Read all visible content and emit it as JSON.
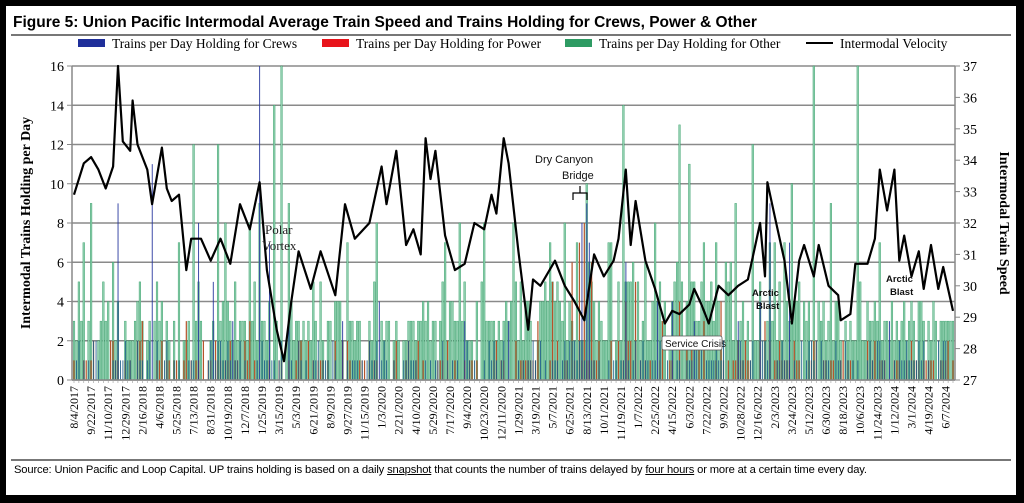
{
  "figure": {
    "title": "Figure 5: Union Pacific Intermodal Average Train Speed and Trains Holding for Crews, Power & Other",
    "source_prefix": "Source: Union Pacific and Loop Capital. UP trains holding is based on a daily ",
    "source_u1": "snapshot",
    "source_mid": " that counts the number of trains delayed by ",
    "source_u2": "four hours",
    "source_suffix": " or more at a certain time every day."
  },
  "colors": {
    "crews": "#1f2f9a",
    "power": "#e8141b",
    "other": "#2e9b63",
    "other_fill": "#8fcfae",
    "velocity": "#000000",
    "grid": "#8a8a8a"
  },
  "chart_data": {
    "type": "bar",
    "title": "Figure 5: Union Pacific Intermodal Average Train Speed and Trains Holding for Crews, Power & Other",
    "ylabel": "Intermodal  Trains  Holding  per  Day",
    "y2label": "Intermodal  Train  Speed",
    "ylim": [
      0,
      16
    ],
    "y2lim": [
      27,
      37
    ],
    "yticks": [
      "0",
      "2",
      "4",
      "6",
      "8",
      "10",
      "12",
      "14",
      "16"
    ],
    "y2ticks": [
      "27",
      "28",
      "29",
      "30",
      "31",
      "32",
      "33",
      "34",
      "35",
      "36",
      "37"
    ],
    "grid": true,
    "legend": {
      "placement": "top",
      "entries": [
        {
          "name": "Trains per Day Holding for Crews",
          "kind": "bar",
          "key": "crews"
        },
        {
          "name": "Trains per Day Holding for Power",
          "kind": "bar",
          "key": "power"
        },
        {
          "name": "Trains per Day Holding for Other",
          "kind": "bar",
          "key": "other"
        },
        {
          "name": "Intermodal Velocity",
          "kind": "line",
          "key": "velocity"
        }
      ]
    },
    "x_tick_labels": [
      "8/4/2017",
      "9/22/2017",
      "11/10/2017",
      "12/29/2017",
      "2/16/2018",
      "4/6/2018",
      "5/25/2018",
      "7/13/2018",
      "8/31/2018",
      "10/19/2018",
      "12/7/2018",
      "1/25/2019",
      "3/15/2019",
      "5/3/2019",
      "6/21/2019",
      "8/9/2019",
      "9/27/2019",
      "11/15/2019",
      "1/3/2020",
      "2/21/2020",
      "4/10/2020",
      "5/29/2020",
      "7/17/2020",
      "9/4/2020",
      "10/23/2020",
      "12/11/2020",
      "1/29/2021",
      "3/19/2021",
      "5/7/2021",
      "6/25/2021",
      "8/13/2021",
      "10/1/2021",
      "11/19/2021",
      "1/7/2022",
      "2/25/2022",
      "4/15/2022",
      "6/3/2022",
      "7/22/2022",
      "9/9/2022",
      "10/28/2022",
      "12/16/2022",
      "2/3/2023",
      "3/24/2023",
      "5/12/2023",
      "6/30/2023",
      "8/18/2023",
      "10/6/2023",
      "11/24/2023",
      "1/12/2024",
      "3/1/2024",
      "4/19/2024",
      "6/7/2024"
    ],
    "weeks_total": 360,
    "series": [
      {
        "name": "Intermodal Velocity",
        "axis": "right",
        "type": "line",
        "points_week_value": [
          [
            0,
            32.9
          ],
          [
            4,
            33.9
          ],
          [
            7,
            34.1
          ],
          [
            10,
            33.7
          ],
          [
            13,
            33.1
          ],
          [
            16,
            33.8
          ],
          [
            18,
            37.0
          ],
          [
            20,
            34.6
          ],
          [
            23,
            34.3
          ],
          [
            24,
            35.9
          ],
          [
            26,
            34.5
          ],
          [
            30,
            33.7
          ],
          [
            32,
            32.6
          ],
          [
            36,
            34.4
          ],
          [
            38,
            33.1
          ],
          [
            40,
            32.7
          ],
          [
            43,
            32.9
          ],
          [
            46,
            30.5
          ],
          [
            48,
            31.5
          ],
          [
            52,
            31.5
          ],
          [
            56,
            30.8
          ],
          [
            60,
            31.5
          ],
          [
            64,
            30.7
          ],
          [
            68,
            32.6
          ],
          [
            72,
            31.8
          ],
          [
            76,
            33.3
          ],
          [
            79,
            30.5
          ],
          [
            83,
            28.6
          ],
          [
            86,
            27.6
          ],
          [
            89,
            29.5
          ],
          [
            92,
            31.1
          ],
          [
            97,
            29.9
          ],
          [
            101,
            31.1
          ],
          [
            107,
            29.7
          ],
          [
            111,
            32.6
          ],
          [
            115,
            31.5
          ],
          [
            121,
            32.0
          ],
          [
            126,
            33.8
          ],
          [
            128,
            32.6
          ],
          [
            132,
            34.3
          ],
          [
            136,
            31.3
          ],
          [
            139,
            31.8
          ],
          [
            142,
            31.0
          ],
          [
            144,
            34.7
          ],
          [
            146,
            33.4
          ],
          [
            148,
            34.3
          ],
          [
            152,
            31.6
          ],
          [
            156,
            30.5
          ],
          [
            160,
            30.7
          ],
          [
            164,
            32.0
          ],
          [
            168,
            31.8
          ],
          [
            171,
            32.9
          ],
          [
            173,
            32.3
          ],
          [
            176,
            34.7
          ],
          [
            178,
            33.9
          ],
          [
            182,
            31.1
          ],
          [
            186,
            28.6
          ],
          [
            188,
            30.2
          ],
          [
            191,
            30.0
          ],
          [
            197,
            30.8
          ],
          [
            201,
            30.0
          ],
          [
            205,
            29.5
          ],
          [
            209,
            28.9
          ],
          [
            213,
            31.0
          ],
          [
            217,
            30.3
          ],
          [
            221,
            30.8
          ],
          [
            223,
            31.5
          ],
          [
            226,
            33.7
          ],
          [
            228,
            31.3
          ],
          [
            230,
            32.7
          ],
          [
            234,
            30.8
          ],
          [
            238,
            29.9
          ],
          [
            242,
            28.8
          ],
          [
            245,
            29.2
          ],
          [
            248,
            29.1
          ],
          [
            252,
            29.4
          ],
          [
            254,
            29.9
          ],
          [
            257,
            29.4
          ],
          [
            260,
            28.8
          ],
          [
            264,
            30.0
          ],
          [
            268,
            29.7
          ],
          [
            272,
            30.0
          ],
          [
            276,
            30.2
          ],
          [
            281,
            32.0
          ],
          [
            283,
            30.3
          ],
          [
            284,
            33.3
          ],
          [
            287,
            32.2
          ],
          [
            291,
            30.8
          ],
          [
            294,
            28.8
          ],
          [
            297,
            30.8
          ],
          [
            299,
            31.3
          ],
          [
            303,
            30.3
          ],
          [
            305,
            31.3
          ],
          [
            309,
            30.0
          ],
          [
            313,
            29.7
          ],
          [
            314,
            28.9
          ],
          [
            318,
            29.1
          ],
          [
            320,
            30.7
          ],
          [
            325,
            30.7
          ],
          [
            328,
            31.5
          ],
          [
            330,
            33.7
          ],
          [
            333,
            32.4
          ],
          [
            336,
            33.7
          ],
          [
            338,
            30.8
          ],
          [
            340,
            31.6
          ],
          [
            343,
            30.3
          ],
          [
            346,
            31.1
          ],
          [
            348,
            29.9
          ],
          [
            351,
            31.3
          ],
          [
            354,
            29.9
          ],
          [
            356,
            30.6
          ],
          [
            360,
            29.2
          ]
        ]
      },
      {
        "name": "Trains per Day Holding for Crews",
        "axis": "left",
        "type": "bar",
        "spikes_week_value": [
          [
            18,
            9
          ],
          [
            32,
            11
          ],
          [
            51,
            8
          ],
          [
            57,
            5
          ],
          [
            65,
            3
          ],
          [
            76,
            16
          ],
          [
            80,
            7
          ],
          [
            88,
            3
          ],
          [
            100,
            2
          ],
          [
            110,
            3
          ],
          [
            125,
            4
          ],
          [
            137,
            2
          ],
          [
            160,
            3
          ],
          [
            170,
            2
          ],
          [
            178,
            3
          ],
          [
            191,
            2
          ],
          [
            208,
            8
          ],
          [
            210,
            9
          ],
          [
            211,
            7
          ],
          [
            226,
            6
          ],
          [
            230,
            2
          ],
          [
            239,
            4
          ],
          [
            245,
            4
          ],
          [
            254,
            3
          ],
          [
            263,
            2
          ],
          [
            272,
            3
          ],
          [
            281,
            4
          ],
          [
            285,
            9
          ],
          [
            293,
            7
          ],
          [
            306,
            2
          ],
          [
            316,
            2
          ],
          [
            334,
            3
          ],
          [
            346,
            2
          ]
        ]
      },
      {
        "name": "Trains per Day Holding for Power",
        "axis": "left",
        "type": "bar",
        "spikes_week_value": [
          [
            28,
            3
          ],
          [
            46,
            3
          ],
          [
            64,
            2
          ],
          [
            72,
            3
          ],
          [
            110,
            2
          ],
          [
            190,
            3
          ],
          [
            196,
            5
          ],
          [
            204,
            6
          ],
          [
            207,
            7
          ],
          [
            209,
            8
          ],
          [
            212,
            6
          ],
          [
            226,
            4
          ],
          [
            230,
            5
          ],
          [
            241,
            3
          ],
          [
            248,
            4
          ],
          [
            258,
            3
          ],
          [
            265,
            4
          ],
          [
            283,
            3
          ],
          [
            295,
            2
          ],
          [
            325,
            2
          ]
        ]
      },
      {
        "name": "Trains per Day Holding for Other",
        "axis": "left",
        "type": "bar",
        "spikes_week_value": [
          [
            2,
            5
          ],
          [
            4,
            7
          ],
          [
            7,
            9
          ],
          [
            16,
            6
          ],
          [
            43,
            7
          ],
          [
            49,
            12
          ],
          [
            59,
            12
          ],
          [
            62,
            8
          ],
          [
            72,
            8
          ],
          [
            76,
            9
          ],
          [
            82,
            14
          ],
          [
            85,
            16
          ],
          [
            88,
            9
          ],
          [
            94,
            3
          ],
          [
            112,
            7
          ],
          [
            124,
            8
          ],
          [
            152,
            7
          ],
          [
            158,
            8
          ],
          [
            168,
            8
          ],
          [
            180,
            8
          ],
          [
            195,
            7
          ],
          [
            201,
            8
          ],
          [
            210,
            10
          ],
          [
            220,
            7
          ],
          [
            225,
            14
          ],
          [
            234,
            6
          ],
          [
            238,
            8
          ],
          [
            248,
            13
          ],
          [
            252,
            11
          ],
          [
            258,
            7
          ],
          [
            271,
            9
          ],
          [
            278,
            12
          ],
          [
            294,
            10
          ],
          [
            303,
            16
          ],
          [
            310,
            9
          ],
          [
            321,
            16
          ],
          [
            330,
            7
          ],
          [
            340,
            4
          ],
          [
            350,
            3
          ]
        ]
      }
    ]
  },
  "annotations": [
    {
      "key": "polar",
      "lines": [
        "Polar",
        "Vortex"
      ]
    },
    {
      "key": "dry",
      "lines": [
        "Dry Canyon",
        "Bridge"
      ]
    },
    {
      "key": "service",
      "lines": [
        "Service Crisis"
      ]
    },
    {
      "key": "arctic1",
      "lines": [
        "Arctic",
        "Blast"
      ]
    },
    {
      "key": "arctic2",
      "lines": [
        "Arctic",
        "Blast"
      ]
    }
  ]
}
